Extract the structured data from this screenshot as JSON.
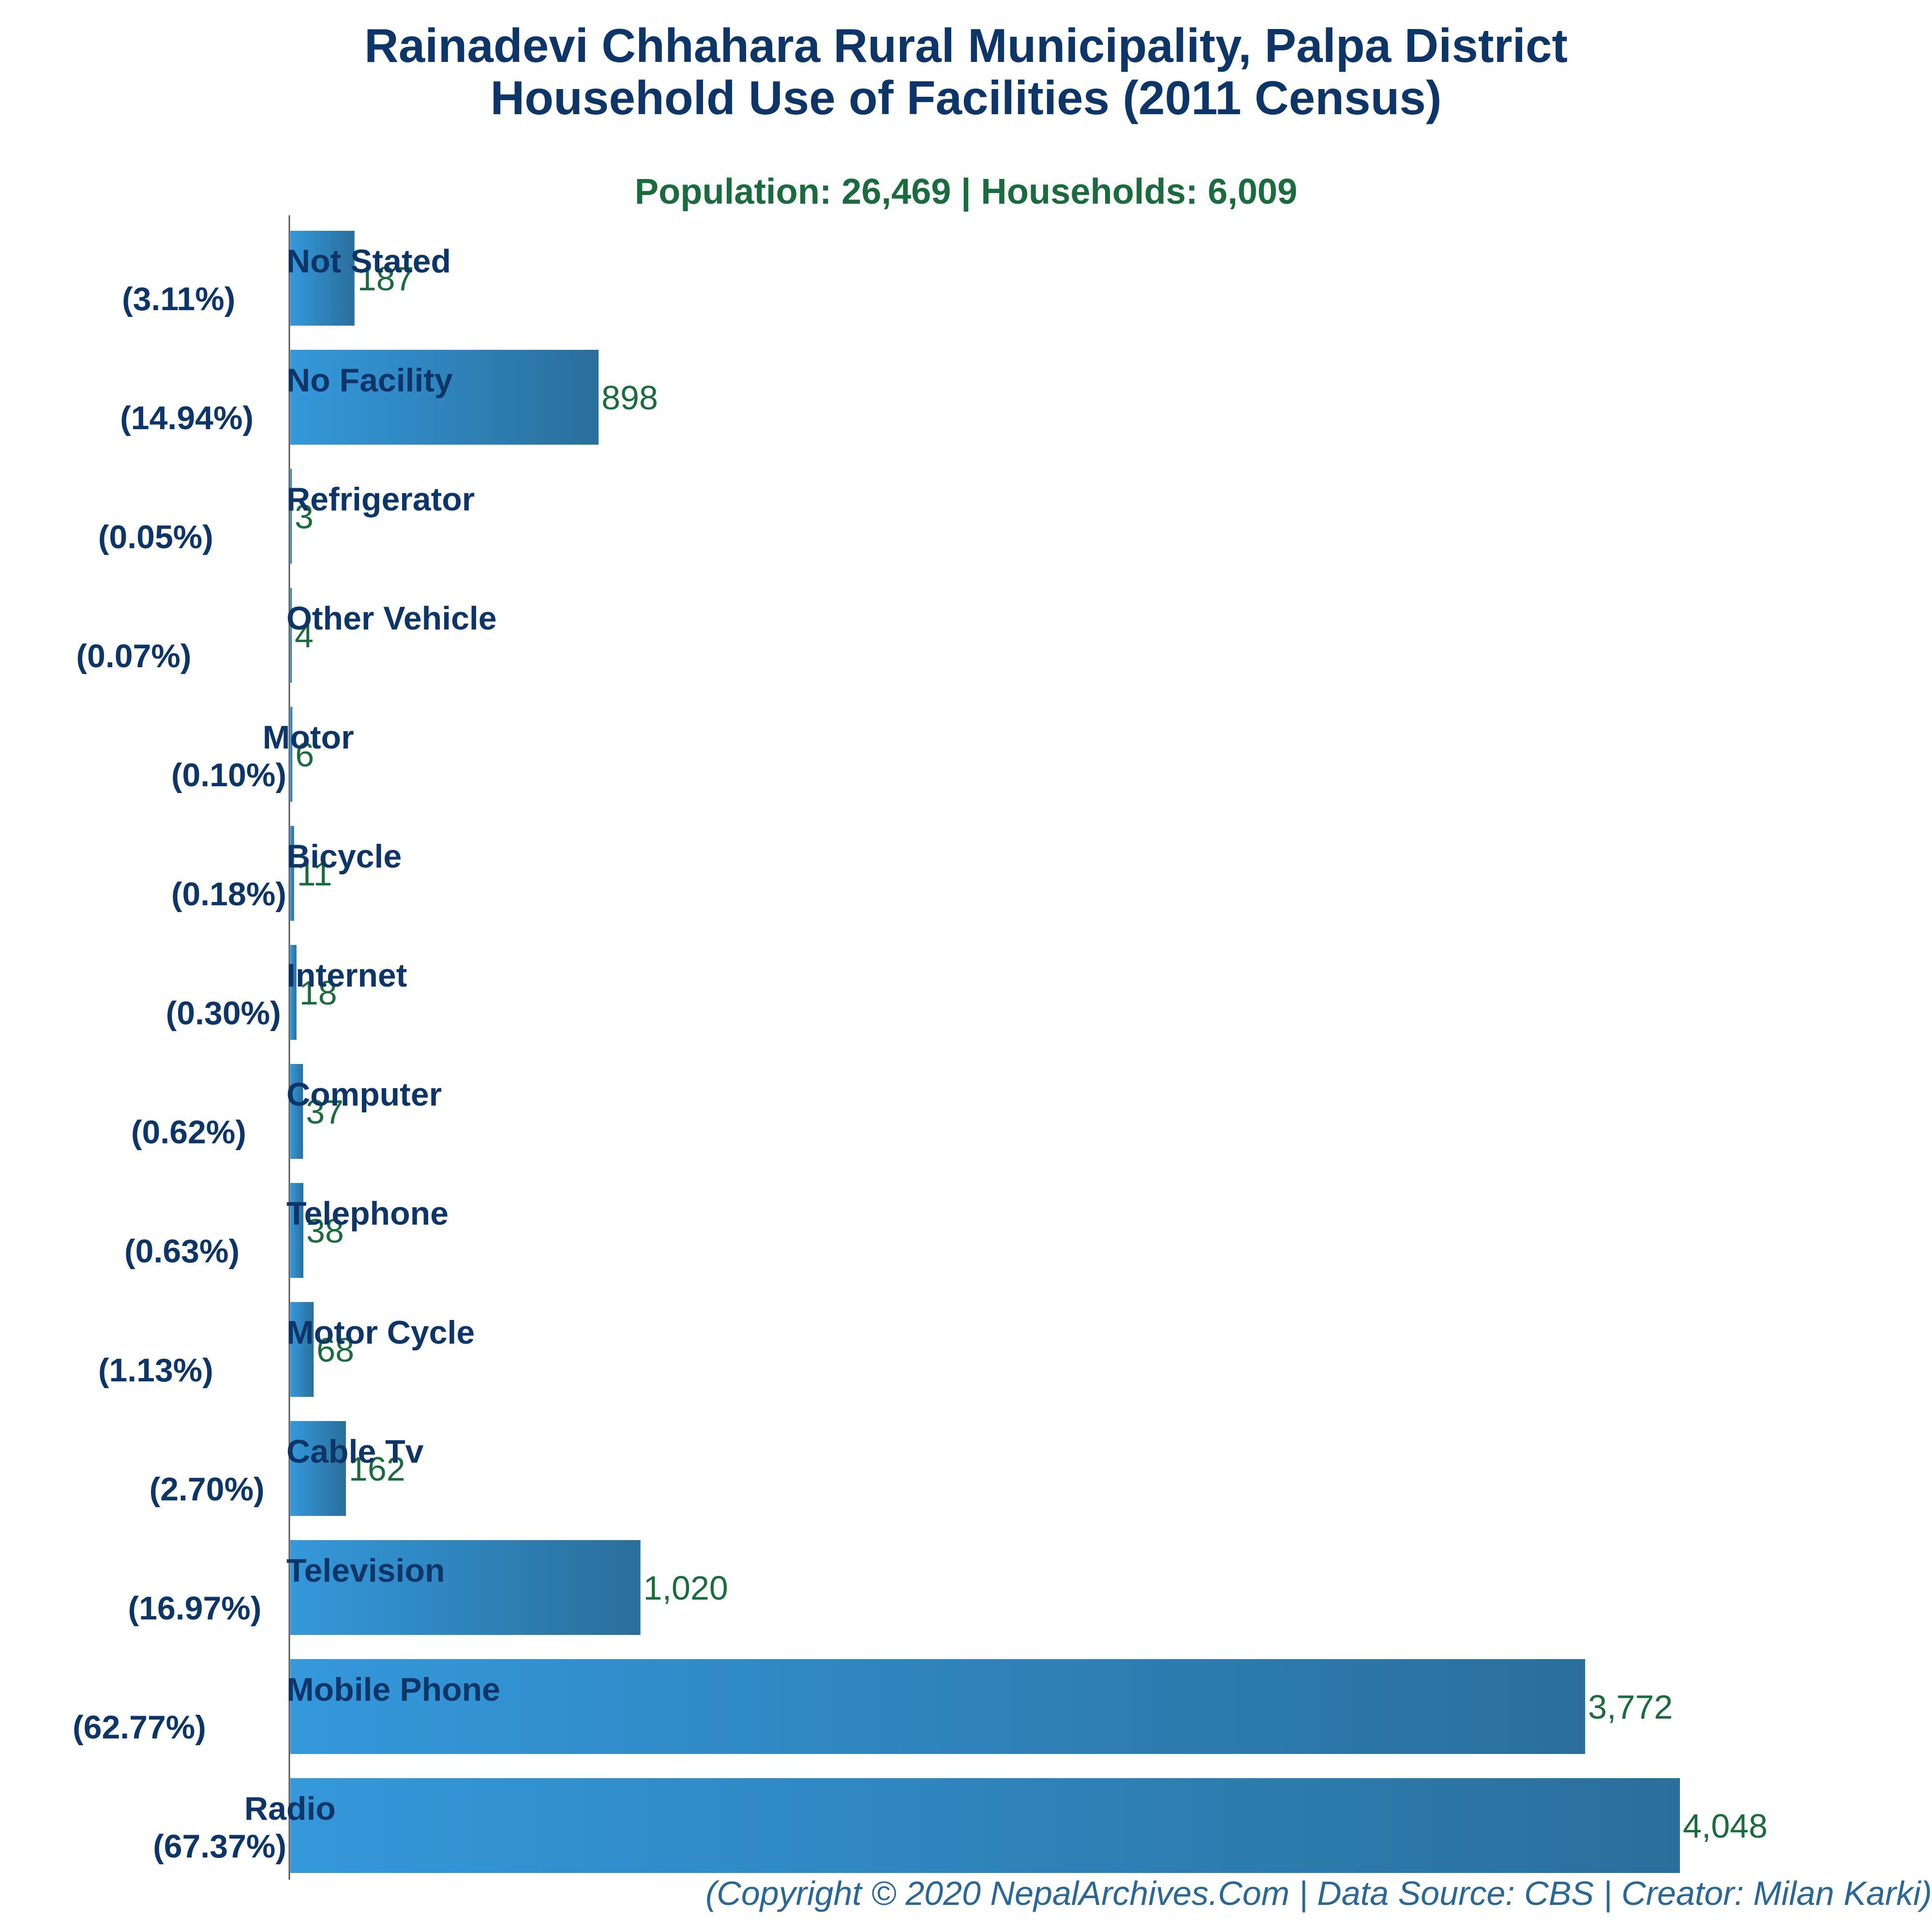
{
  "chart_data": {
    "type": "bar",
    "orientation": "horizontal",
    "title_line1": "Rainadevi Chhahara Rural Municipality, Palpa District",
    "title_line2": "Household Use of Facilities (2011 Census)",
    "subtitle": "Population: 26,469 | Households: 6,009",
    "categories": [
      "Not Stated",
      "No Facility",
      "Refrigerator",
      "Other Vehicle",
      "Motor",
      "Bicycle",
      "Internet",
      "Computer",
      "Telephone",
      "Motor Cycle",
      "Cable Tv",
      "Television",
      "Mobile Phone",
      "Radio"
    ],
    "percent_labels": [
      "(3.11%)",
      "(14.94%)",
      "(0.05%)",
      "(0.07%)",
      "(0.10%)",
      "(0.18%)",
      "(0.30%)",
      "(0.62%)",
      "(0.63%)",
      "(1.13%)",
      "(2.70%)",
      "(16.97%)",
      "(62.77%)",
      "(67.37%)"
    ],
    "values": [
      187,
      898,
      3,
      4,
      6,
      11,
      18,
      37,
      38,
      68,
      162,
      1020,
      3772,
      4048
    ],
    "value_labels": [
      "187",
      "898",
      "3",
      "4",
      "6",
      "11",
      "18",
      "37",
      "38",
      "68",
      "162",
      "1,020",
      "3,772",
      "4,048"
    ],
    "xlim": [
      0,
      4048
    ],
    "grid": false,
    "legend": "none",
    "colors": {
      "bar_start": "#3498db",
      "bar_end": "#2a6f9c",
      "title": "#0d3567",
      "subtitle": "#1c6b3e",
      "value_label": "#1c6b3e",
      "category_label": "#0d3567",
      "footer": "#2a6795"
    }
  },
  "footer": "(Copyright © 2020 NepalArchives.Com | Data Source: CBS | Creator: Milan Karki)"
}
